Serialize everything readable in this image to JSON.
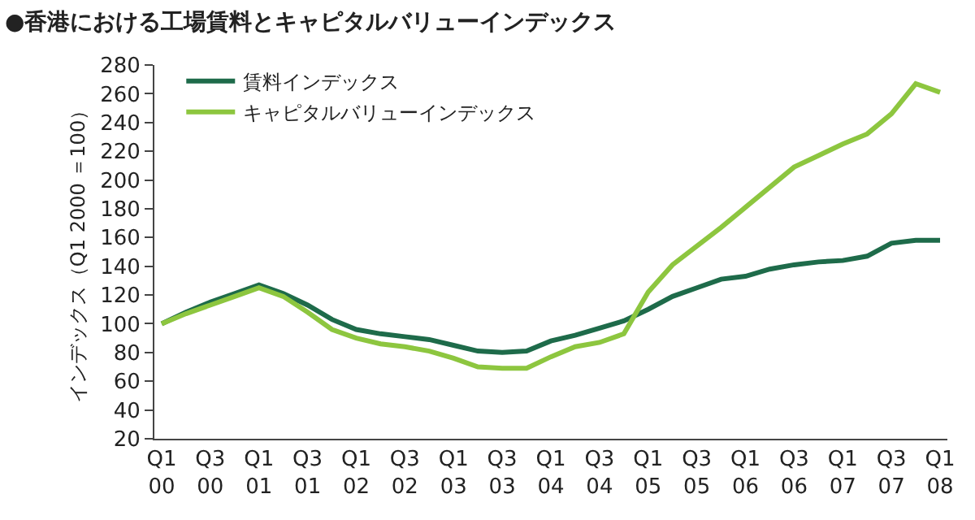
{
  "chart_data": {
    "type": "line",
    "title": "●香港における工場賃料とキャピタルバリューインデックス",
    "ylabel": "インデックス（Q1 2000 ＝100）",
    "categories": [
      "Q1\n00",
      null,
      "Q3\n00",
      null,
      "Q1\n01",
      null,
      "Q3\n01",
      null,
      "Q1\n02",
      null,
      "Q3\n02",
      null,
      "Q1\n03",
      null,
      "Q3\n03",
      null,
      "Q1\n04",
      null,
      "Q3\n04",
      null,
      "Q1\n05",
      null,
      "Q3\n05",
      null,
      "Q1\n06",
      null,
      "Q3\n06",
      null,
      "Q1\n07",
      null,
      "Q3\n07",
      null,
      "Q1\n08"
    ],
    "series": [
      {
        "name": "賃料インデックス",
        "color": "#1e6b4a",
        "values": [
          100,
          108,
          115,
          121,
          127,
          121,
          113,
          103,
          96,
          93,
          91,
          89,
          85,
          81,
          80,
          81,
          88,
          92,
          97,
          102,
          110,
          119,
          125,
          131,
          133,
          138,
          141,
          143,
          144,
          147,
          156,
          158,
          158
        ]
      },
      {
        "name": "キャピタルバリューインデックス",
        "color": "#8dc63f",
        "values": [
          100,
          107,
          113,
          119,
          125,
          119,
          108,
          96,
          90,
          86,
          84,
          81,
          76,
          70,
          69,
          69,
          77,
          84,
          87,
          93,
          122,
          141,
          154,
          167,
          181,
          195,
          209,
          217,
          225,
          232,
          246,
          267,
          261
        ]
      }
    ],
    "ylim": [
      20,
      280
    ],
    "yticks": [
      20,
      40,
      60,
      80,
      100,
      120,
      140,
      160,
      180,
      200,
      220,
      240,
      260,
      280
    ],
    "legend": "top left",
    "marker": "none",
    "line_style": "solid"
  }
}
